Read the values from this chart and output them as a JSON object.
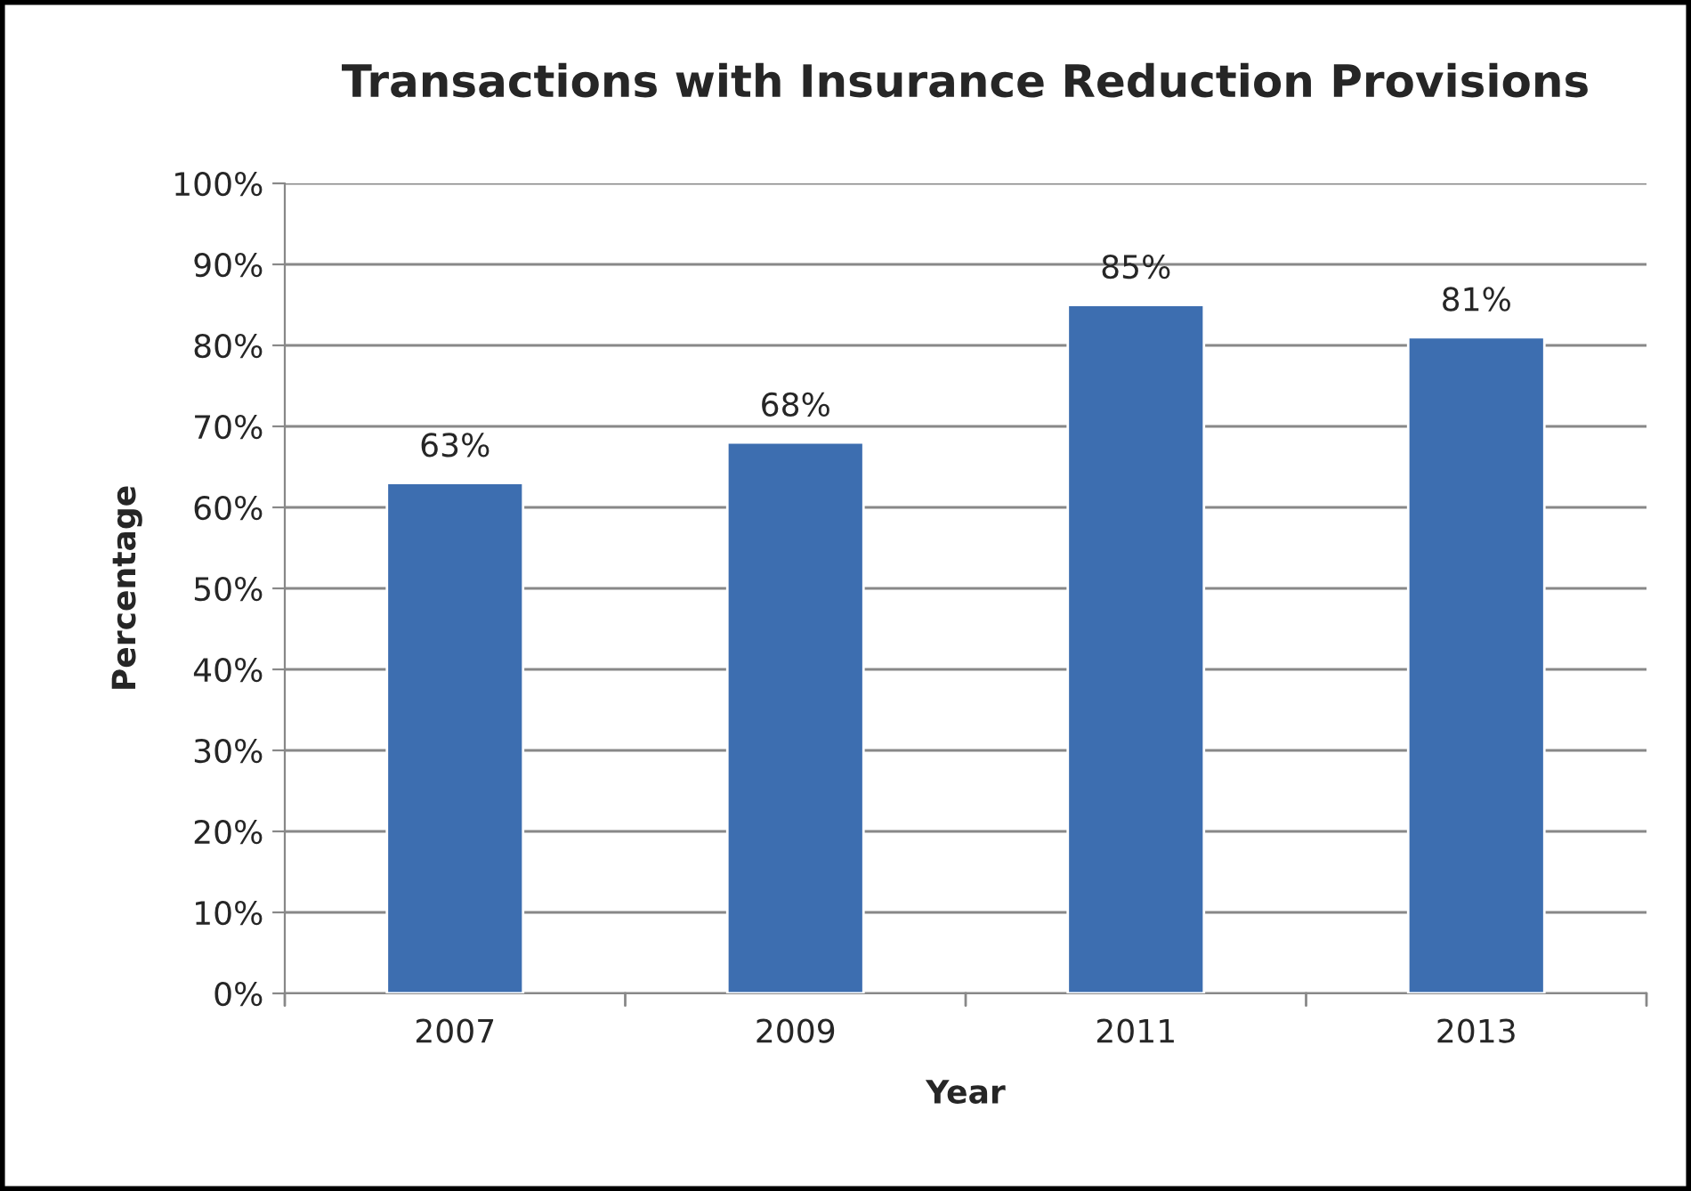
{
  "chart_data": {
    "type": "bar",
    "title": "Transactions with Insurance Reduction Provisions",
    "xlabel": "Year",
    "ylabel": "Percentage",
    "categories": [
      "2007",
      "2009",
      "2011",
      "2013"
    ],
    "values": [
      63,
      68,
      85,
      81
    ],
    "color": "#3d6eb0",
    "value_labels": [
      "63%",
      "68%",
      "85%",
      "81%"
    ],
    "ylim": [
      0,
      100
    ],
    "yticks": [
      {
        "value": 0,
        "label": "0%"
      },
      {
        "value": 10,
        "label": "10%"
      },
      {
        "value": 20,
        "label": "20%"
      },
      {
        "value": 30,
        "label": "30%"
      },
      {
        "value": 40,
        "label": "40%"
      },
      {
        "value": 50,
        "label": "50%"
      },
      {
        "value": 60,
        "label": "60%"
      },
      {
        "value": 70,
        "label": "70%"
      },
      {
        "value": 80,
        "label": "80%"
      },
      {
        "value": 90,
        "label": "90%"
      },
      {
        "value": 100,
        "label": "100%"
      }
    ],
    "grid": "y",
    "legend": false
  }
}
